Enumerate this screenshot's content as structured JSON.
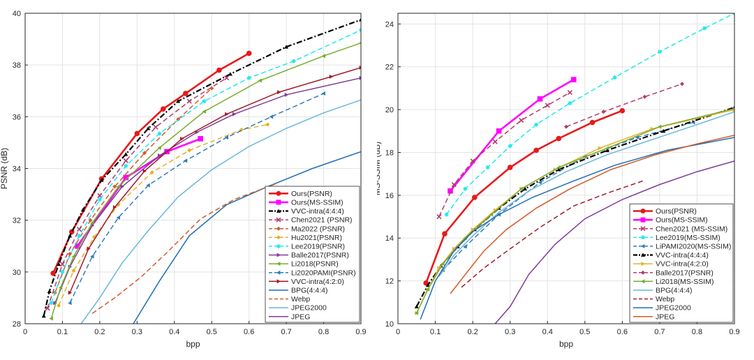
{
  "chart_data": [
    {
      "type": "line",
      "xlabel": "bpp",
      "ylabel": "PSNR (dB)",
      "xlim": [
        0,
        0.9
      ],
      "ylim": [
        28,
        40
      ],
      "xticks": [
        "0",
        "0.1",
        "0.2",
        "0.3",
        "0.4",
        "0.5",
        "0.6",
        "0.7",
        "0.8",
        "0.9"
      ],
      "yticks": [
        "28",
        "30",
        "32",
        "34",
        "36",
        "38",
        "40"
      ],
      "xtick_values": [
        0,
        0.1,
        0.2,
        0.3,
        0.4,
        0.5,
        0.6,
        0.7,
        0.8,
        0.9
      ],
      "ytick_values": [
        28,
        30,
        32,
        34,
        36,
        38,
        40
      ],
      "grid": true,
      "legend_position": "bottom-right",
      "series": [
        {
          "name": "Ours(PSNR)",
          "color": "#e8191b",
          "dash": "solid",
          "marker": "circle",
          "x": [
            0.075,
            0.125,
            0.205,
            0.3,
            0.37,
            0.43,
            0.52,
            0.6
          ],
          "y": [
            29.95,
            31.55,
            33.6,
            35.35,
            36.3,
            36.9,
            37.8,
            38.45
          ]
        },
        {
          "name": "Ours(MS-SSIM)",
          "color": "#ff00ff",
          "dash": "solid",
          "marker": "square",
          "x": [
            0.14,
            0.27,
            0.38,
            0.47
          ],
          "y": [
            31.0,
            33.65,
            34.65,
            35.15
          ]
        },
        {
          "name": "VVC-intra(4:4:4)",
          "color": "#000000",
          "dash": "dashdot",
          "marker": "triangle",
          "x": [
            0.05,
            0.065,
            0.09,
            0.12,
            0.155,
            0.205,
            0.27,
            0.33,
            0.41,
            0.55,
            0.7,
            0.9
          ],
          "y": [
            28.3,
            29.25,
            30.3,
            31.4,
            32.4,
            33.55,
            34.55,
            35.55,
            36.6,
            37.65,
            38.7,
            39.75
          ]
        },
        {
          "name": "Chen2021 (PSNR)",
          "color": "#b03b6e",
          "dash": "dashed",
          "marker": "x",
          "x": [
            0.06,
            0.1,
            0.145,
            0.2,
            0.27,
            0.35,
            0.44,
            0.54
          ],
          "y": [
            28.6,
            30.3,
            31.65,
            32.95,
            34.3,
            35.6,
            36.6,
            37.5
          ]
        },
        {
          "name": "Ma2022 (PSNR)",
          "color": "#d35a27",
          "dash": "dashed",
          "marker": "diamond",
          "x": [
            0.08,
            0.12,
            0.175,
            0.24,
            0.32,
            0.41,
            0.5
          ],
          "y": [
            29.2,
            30.7,
            32.0,
            33.3,
            34.6,
            35.9,
            37.1
          ]
        },
        {
          "name": "Hu2021(PSNR)",
          "color": "#e4b027",
          "dash": "dashed",
          "marker": "diamond",
          "x": [
            0.09,
            0.13,
            0.185,
            0.25,
            0.34,
            0.44,
            0.58,
            0.65
          ],
          "y": [
            28.7,
            30.05,
            31.35,
            32.6,
            33.85,
            34.7,
            35.5,
            35.7
          ]
        },
        {
          "name": "Lee2019(PSNR)",
          "color": "#1ee8ef",
          "dash": "dashed",
          "marker": "star",
          "x": [
            0.07,
            0.1,
            0.145,
            0.2,
            0.27,
            0.36,
            0.48,
            0.6,
            0.72,
            0.9
          ],
          "y": [
            28.8,
            30.0,
            31.4,
            32.8,
            34.1,
            35.35,
            36.6,
            37.5,
            38.15,
            39.35
          ]
        },
        {
          "name": "Balle2017(PSNR)",
          "color": "#7e3c97",
          "dash": "solid",
          "marker": "triangle-right",
          "x": [
            0.08,
            0.12,
            0.18,
            0.26,
            0.36,
            0.46,
            0.56,
            0.7,
            0.9
          ],
          "y": [
            28.8,
            30.2,
            31.8,
            33.3,
            34.5,
            35.4,
            36.1,
            36.85,
            37.5
          ]
        },
        {
          "name": "Li2018(PSNR)",
          "color": "#79ac2e",
          "dash": "solid",
          "marker": "triangle-left",
          "x": [
            0.07,
            0.095,
            0.13,
            0.18,
            0.25,
            0.36,
            0.48,
            0.63,
            0.8,
            0.9
          ],
          "y": [
            28.2,
            29.4,
            30.6,
            31.9,
            33.3,
            34.8,
            36.2,
            37.4,
            38.35,
            38.85
          ]
        },
        {
          "name": "Li2020PAMI(PSNR)",
          "color": "#2e7bbc",
          "dash": "dashed",
          "marker": "triangle-left",
          "x": [
            0.12,
            0.18,
            0.25,
            0.33,
            0.43,
            0.54,
            0.66,
            0.8
          ],
          "y": [
            28.8,
            30.6,
            32.1,
            33.35,
            34.3,
            35.2,
            36.0,
            36.9
          ]
        },
        {
          "name": "VVC-intra(4:2:0)",
          "color": "#a21a2a",
          "dash": "solid",
          "marker": "triangle-right",
          "x": [
            0.12,
            0.17,
            0.24,
            0.32,
            0.42,
            0.54,
            0.68,
            0.82,
            0.9
          ],
          "y": [
            29.2,
            30.9,
            32.5,
            33.9,
            35.15,
            36.1,
            36.95,
            37.55,
            37.9
          ]
        },
        {
          "name": "BPG(4:4:4)",
          "color": "#1f6eb5",
          "dash": "solid",
          "marker": "none",
          "x": [
            0.29,
            0.36,
            0.44,
            0.54,
            0.65,
            0.77,
            0.9
          ],
          "y": [
            28.0,
            29.65,
            31.4,
            32.6,
            33.3,
            34.0,
            34.65
          ]
        },
        {
          "name": "Webp",
          "color": "#d35a27",
          "dash": "dashed",
          "marker": "none",
          "x": [
            0.18,
            0.24,
            0.31,
            0.38,
            0.47,
            0.56,
            0.67
          ],
          "y": [
            28.4,
            29.0,
            29.8,
            30.75,
            32.05,
            32.8,
            33.4
          ]
        },
        {
          "name": "JPEG2000",
          "color": "#6ab6d9",
          "dash": "solid",
          "marker": "none",
          "x": [
            0.15,
            0.2,
            0.26,
            0.33,
            0.41,
            0.5,
            0.6,
            0.7,
            0.8,
            0.9
          ],
          "y": [
            28.0,
            29.0,
            30.35,
            31.6,
            32.9,
            33.95,
            34.85,
            35.55,
            36.15,
            36.65
          ]
        },
        {
          "name": "JPEG",
          "color": "#7e3c97",
          "dash": "solid",
          "marker": "none",
          "x": [],
          "y": []
        }
      ]
    },
    {
      "type": "line",
      "xlabel": "bpp",
      "ylabel": "MS-SSIM (dB)",
      "xlim": [
        0,
        0.9
      ],
      "ylim": [
        10,
        24.5
      ],
      "xticks": [
        "0",
        "0.1",
        "0.2",
        "0.3",
        "0.4",
        "0.5",
        "0.6",
        "0.7",
        "0.8",
        "0.9"
      ],
      "yticks": [
        "10",
        "12",
        "14",
        "16",
        "18",
        "20",
        "22",
        "24"
      ],
      "xtick_values": [
        0,
        0.1,
        0.2,
        0.3,
        0.4,
        0.5,
        0.6,
        0.7,
        0.8,
        0.9
      ],
      "ytick_values": [
        10,
        12,
        14,
        16,
        18,
        20,
        22,
        24
      ],
      "grid": true,
      "legend_position": "bottom-right",
      "series": [
        {
          "name": "Ours(PSNR)",
          "color": "#e8191b",
          "dash": "solid",
          "marker": "circle",
          "x": [
            0.075,
            0.125,
            0.205,
            0.3,
            0.37,
            0.43,
            0.52,
            0.6
          ],
          "y": [
            11.9,
            14.2,
            15.9,
            17.3,
            18.1,
            18.65,
            19.4,
            19.95
          ]
        },
        {
          "name": "Ours(MS-SSIM)",
          "color": "#ff00ff",
          "dash": "solid",
          "marker": "square",
          "x": [
            0.14,
            0.27,
            0.38,
            0.47
          ],
          "y": [
            16.2,
            19.0,
            20.5,
            21.4
          ]
        },
        {
          "name": "Chen2021 (MS-SSIM)",
          "color": "#b03b6e",
          "dash": "dashed",
          "marker": "x",
          "x": [
            0.11,
            0.15,
            0.2,
            0.26,
            0.33,
            0.4,
            0.46
          ],
          "y": [
            15.0,
            16.5,
            17.6,
            18.5,
            19.5,
            20.2,
            20.8
          ]
        },
        {
          "name": "Lee2019(MS-SSIM)",
          "color": "#1ee8ef",
          "dash": "dashed",
          "marker": "star",
          "x": [
            0.13,
            0.18,
            0.24,
            0.3,
            0.37,
            0.46,
            0.58,
            0.7,
            0.82,
            0.9
          ],
          "y": [
            15.1,
            16.3,
            17.3,
            18.3,
            19.3,
            20.3,
            21.5,
            22.7,
            23.8,
            24.5
          ]
        },
        {
          "name": "LiPAMI2020(MS-SSIM)",
          "color": "#2e7bbc",
          "dash": "dashed",
          "marker": "triangle-left",
          "x": [
            0.12,
            0.18,
            0.27,
            0.38,
            0.5,
            0.64,
            0.79
          ],
          "y": [
            12.5,
            13.6,
            15.1,
            16.6,
            17.8,
            18.7,
            19.4
          ]
        },
        {
          "name": "VVC-intra(4:4:4)",
          "color": "#000000",
          "dash": "dashdot",
          "marker": "triangle",
          "x": [
            0.05,
            0.08,
            0.115,
            0.16,
            0.205,
            0.27,
            0.34,
            0.43,
            0.56,
            0.71,
            0.9
          ],
          "y": [
            10.8,
            11.8,
            12.7,
            13.6,
            14.4,
            15.4,
            16.3,
            17.2,
            18.1,
            19.0,
            20.1
          ]
        },
        {
          "name": "VVC-intra(4:2:0)",
          "color": "#e4b027",
          "dash": "solid",
          "marker": "triangle-right",
          "x": [
            0.05,
            0.08,
            0.11,
            0.15,
            0.2,
            0.26,
            0.33,
            0.42,
            0.54,
            0.68,
            0.9
          ],
          "y": [
            10.5,
            11.6,
            12.6,
            13.5,
            14.4,
            15.3,
            16.3,
            17.2,
            18.2,
            19.1,
            20.0
          ]
        },
        {
          "name": "Balle2017(PSNR)",
          "color": "#b03b6e",
          "dash": "dashed",
          "marker": "diamond",
          "x": [
            0.45,
            0.55,
            0.66,
            0.76
          ],
          "y": [
            19.2,
            19.9,
            20.6,
            21.2
          ]
        },
        {
          "name": "Li2018(MS-SSIM)",
          "color": "#79ac2e",
          "dash": "solid",
          "marker": "triangle-left",
          "x": [
            0.05,
            0.08,
            0.12,
            0.18,
            0.25,
            0.33,
            0.43,
            0.56,
            0.7,
            0.9
          ],
          "y": [
            10.5,
            11.6,
            12.8,
            14.0,
            15.1,
            16.3,
            17.3,
            18.2,
            19.2,
            20.05
          ]
        },
        {
          "name": "BPG(4:4:4)",
          "color": "#6ab6d9",
          "dash": "solid",
          "marker": "none",
          "x": [
            0.11,
            0.15,
            0.2,
            0.27,
            0.35,
            0.45,
            0.56,
            0.68,
            0.8,
            0.9
          ],
          "y": [
            12.2,
            13.2,
            14.1,
            15.2,
            16.2,
            17.1,
            17.9,
            18.6,
            19.3,
            19.9
          ]
        },
        {
          "name": "Webp",
          "color": "#a21a2a",
          "dash": "dashed",
          "marker": "none",
          "x": [
            0.17,
            0.23,
            0.3,
            0.38,
            0.47,
            0.56,
            0.66
          ],
          "y": [
            11.7,
            12.6,
            13.5,
            14.5,
            15.5,
            16.1,
            16.7
          ]
        },
        {
          "name": "JPEG2000",
          "color": "#1f6eb5",
          "dash": "solid",
          "marker": "none",
          "x": [
            0.06,
            0.1,
            0.15,
            0.2,
            0.27,
            0.36,
            0.46,
            0.58,
            0.72,
            0.9
          ],
          "y": [
            10.2,
            12.0,
            13.4,
            14.3,
            15.1,
            15.9,
            16.6,
            17.4,
            18.1,
            18.7
          ]
        },
        {
          "name": "JPEG",
          "color": "#d35a27",
          "dash": "solid",
          "marker": "none",
          "x": [
            0.14,
            0.18,
            0.23,
            0.29,
            0.37,
            0.46,
            0.57,
            0.69,
            0.8,
            0.9
          ],
          "y": [
            11.4,
            12.3,
            13.4,
            14.4,
            15.4,
            16.3,
            17.2,
            17.9,
            18.4,
            18.8
          ]
        },
        {
          "name": "",
          "color": "#7e3c97",
          "dash": "solid",
          "marker": "none",
          "x": [
            0.26,
            0.3,
            0.35,
            0.42,
            0.5,
            0.6,
            0.7,
            0.8,
            0.9
          ],
          "y": [
            10.0,
            10.8,
            12.3,
            13.7,
            14.9,
            15.8,
            16.5,
            17.1,
            17.6
          ]
        }
      ]
    }
  ]
}
